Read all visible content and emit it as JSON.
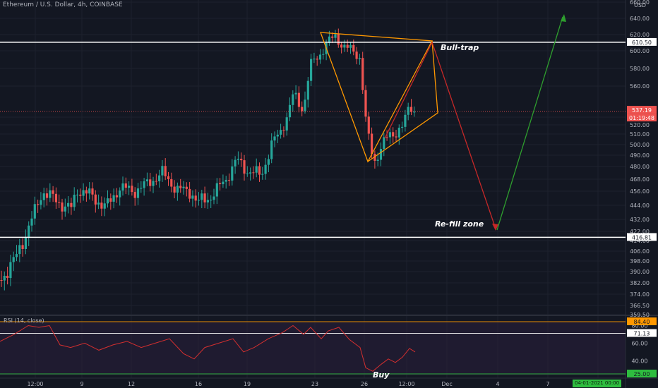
{
  "chart_data": {
    "type": "candlestick",
    "header": "Ethereum / U.S. Dollar, 4h, COINBASE",
    "currency": "USD",
    "price_axis_ticks": [
      359.5,
      366.5,
      374.0,
      382.0,
      390.0,
      398.0,
      406.0,
      414.0,
      422.0,
      432.0,
      444.0,
      456.0,
      468.0,
      480.0,
      490.0,
      500.0,
      510.0,
      520.0,
      530.0,
      560.0,
      580.0,
      600.0,
      620.0,
      640.0,
      660.0
    ],
    "time_axis_ticks": [
      "12:00",
      "9",
      "12",
      "16",
      "19",
      "23",
      "26",
      "12:00",
      "Dec",
      "4",
      "7",
      "10"
    ],
    "horizontal_levels": [
      {
        "label": "610.50",
        "value": 610.5,
        "color": "#ffffff"
      },
      {
        "label": "416.81",
        "value": 416.81,
        "color": "#ffffff"
      }
    ],
    "last_price": {
      "label": "537.19",
      "value": 537.19,
      "color": "#ef5350"
    },
    "countdown": "01:19:48",
    "price_path": [
      [
        0,
        384
      ],
      [
        20,
        398
      ],
      [
        40,
        424
      ],
      [
        60,
        456
      ],
      [
        80,
        448
      ],
      [
        100,
        440
      ],
      [
        110,
        458
      ],
      [
        130,
        452
      ],
      [
        150,
        442
      ],
      [
        170,
        460
      ],
      [
        190,
        456
      ],
      [
        210,
        464
      ],
      [
        230,
        474
      ],
      [
        250,
        458
      ],
      [
        270,
        456
      ],
      [
        280,
        446
      ],
      [
        300,
        452
      ],
      [
        320,
        468
      ],
      [
        335,
        486
      ],
      [
        350,
        476
      ],
      [
        370,
        472
      ],
      [
        385,
        500
      ],
      [
        400,
        516
      ],
      [
        415,
        552
      ],
      [
        430,
        540
      ],
      [
        440,
        584
      ],
      [
        455,
        598
      ],
      [
        465,
        612
      ],
      [
        475,
        618
      ],
      [
        485,
        606
      ],
      [
        500,
        600
      ],
      [
        510,
        592
      ],
      [
        515,
        548
      ],
      [
        520,
        512
      ],
      [
        530,
        484
      ],
      [
        540,
        498
      ],
      [
        550,
        508
      ],
      [
        560,
        512
      ],
      [
        570,
        518
      ],
      [
        580,
        544
      ],
      [
        588,
        537
      ]
    ],
    "annotations": {
      "bull_trap": "Bull-trap",
      "refill_zone": "Re-fill zone",
      "buy": "Buy"
    },
    "rsi": {
      "label": "RSI (14, close)",
      "period": 14,
      "levels": [
        {
          "label": "84.40",
          "value": 84.4,
          "color": "#ff9800"
        },
        {
          "label": "71.13",
          "value": 71.13,
          "color": "#ffffff"
        },
        {
          "label": "25.00",
          "value": 25.0,
          "color": "#2ebd3f"
        }
      ],
      "ticks": [
        80.0,
        60.0,
        40.0
      ],
      "series": [
        [
          0,
          62
        ],
        [
          20,
          70
        ],
        [
          40,
          80
        ],
        [
          55,
          78
        ],
        [
          70,
          80
        ],
        [
          85,
          58
        ],
        [
          100,
          55
        ],
        [
          120,
          60
        ],
        [
          140,
          52
        ],
        [
          160,
          58
        ],
        [
          180,
          62
        ],
        [
          200,
          55
        ],
        [
          220,
          60
        ],
        [
          240,
          65
        ],
        [
          260,
          48
        ],
        [
          275,
          42
        ],
        [
          290,
          55
        ],
        [
          310,
          60
        ],
        [
          330,
          65
        ],
        [
          345,
          50
        ],
        [
          360,
          55
        ],
        [
          380,
          65
        ],
        [
          400,
          72
        ],
        [
          415,
          80
        ],
        [
          430,
          70
        ],
        [
          440,
          78
        ],
        [
          455,
          65
        ],
        [
          465,
          74
        ],
        [
          480,
          78
        ],
        [
          495,
          64
        ],
        [
          510,
          55
        ],
        [
          518,
          32
        ],
        [
          528,
          28
        ],
        [
          540,
          36
        ],
        [
          550,
          42
        ],
        [
          560,
          38
        ],
        [
          570,
          44
        ],
        [
          580,
          54
        ],
        [
          588,
          50
        ]
      ]
    },
    "date_badge": "04-01-2021   00:00"
  }
}
